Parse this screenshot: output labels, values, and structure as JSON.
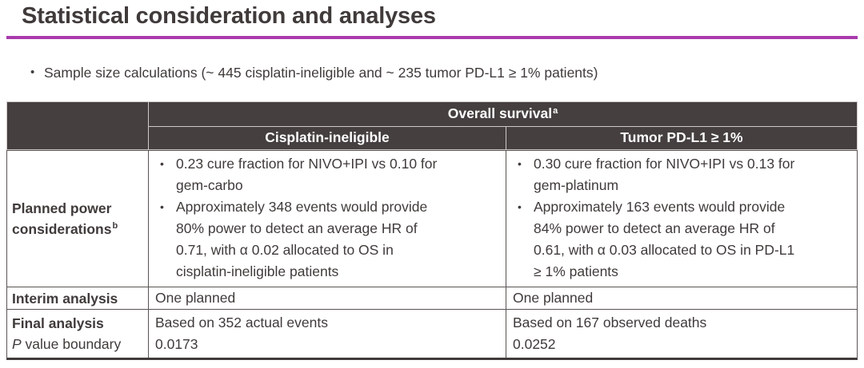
{
  "page": {
    "title": "Statistical consideration and analyses",
    "sample_size_bullet": "Sample size calculations (~ 445 cisplatin-ineligible and ~ 235 tumor PD-L1 ≥ 1% patients)"
  },
  "glyphs": {
    "bullet": "•"
  },
  "colors": {
    "accent_rule": "#A93AAD",
    "header_bg": "#453F3F",
    "header_text": "#FFFFFF",
    "body_text": "#403B3A"
  },
  "table": {
    "header": {
      "overall_survival": "Overall survival",
      "overall_survival_sup": "a",
      "subcol_left": "Cisplatin-ineligible",
      "subcol_right": "Tumor PD-L1 ≥ 1%"
    },
    "planned_power": {
      "label": "Planned power considerations",
      "label_sup": "b",
      "cisplatin_bullets": [
        "0.23 cure fraction for NIVO+IPI vs 0.10 for\ngem-carbo",
        "Approximately 348 events would provide\n80% power to detect an average HR of\n0.71, with α 0.02 allocated to OS in\ncisplatin-ineligible patients"
      ],
      "pdl1_bullets": [
        "0.30 cure fraction for NIVO+IPI vs 0.13 for\ngem-platinum",
        "Approximately 163 events would provide\n84% power to detect an average HR of\n0.61, with α 0.03 allocated to OS in PD-L1\n≥ 1% patients"
      ]
    },
    "interim": {
      "label": "Interim analysis",
      "cisplatin": "One planned",
      "pdl1": "One planned"
    },
    "final": {
      "label_line1": "Final analysis",
      "label_line2_italic": "P",
      "label_line2_rest": " value boundary",
      "cisplatin_line1": "Based on 352 actual events",
      "cisplatin_line2": "0.0173",
      "pdl1_line1": "Based on 167 observed deaths",
      "pdl1_line2": "0.0252"
    }
  }
}
